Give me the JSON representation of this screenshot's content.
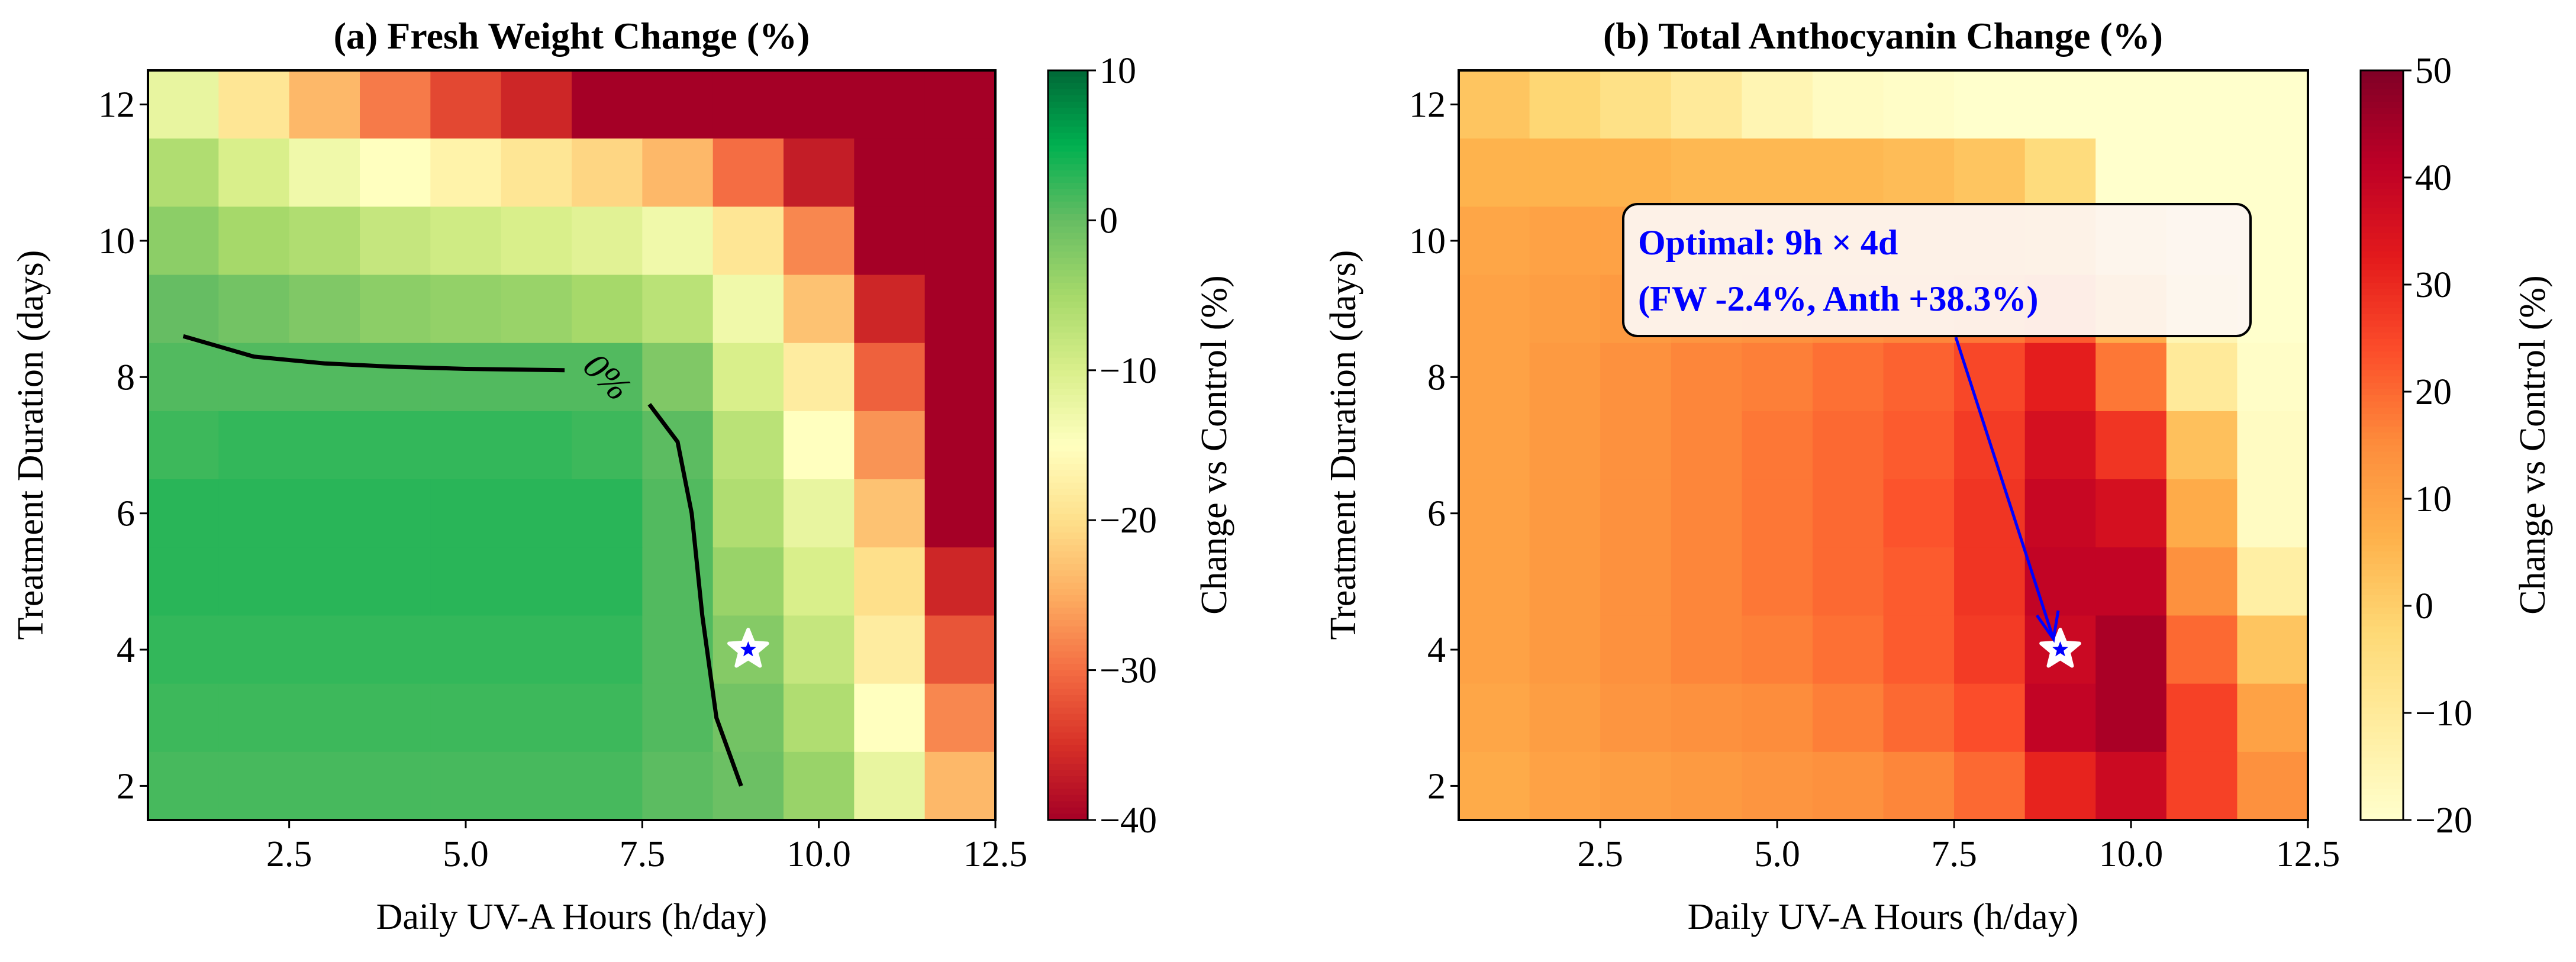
{
  "chart_data": [
    {
      "type": "heatmap",
      "title": "(a) Fresh Weight Change (%)",
      "xlabel": "Daily UV-A Hours (h/day)",
      "ylabel": "Treatment Duration (days)",
      "x": [
        1,
        2,
        3,
        4,
        5,
        6,
        7,
        8,
        9,
        10,
        11,
        12
      ],
      "y": [
        12,
        11,
        10,
        9,
        8,
        7,
        6,
        5,
        4,
        3,
        2
      ],
      "xlim": [
        0.5,
        12.5
      ],
      "ylim": [
        1.5,
        12.5
      ],
      "xticks": [
        "2.5",
        "5.0",
        "7.5",
        "10.0",
        "12.5"
      ],
      "xtick_values": [
        2.5,
        5,
        7.5,
        10,
        12.5
      ],
      "yticks": [
        "2",
        "4",
        "6",
        "8",
        "10",
        "12"
      ],
      "ytick_values": [
        2,
        4,
        6,
        8,
        10,
        12
      ],
      "colormap": "RdYlGn",
      "clim": [
        -40,
        10
      ],
      "colorbar_label": "Change vs Control (%)",
      "colorbar_ticks": [
        "10",
        "0",
        "−10",
        "−20",
        "−30",
        "−40"
      ],
      "colorbar_tick_values": [
        10,
        0,
        -10,
        -20,
        -30,
        -40
      ],
      "values": [
        [
          -12,
          -19,
          -24,
          -29,
          -33,
          -36,
          -40,
          -40,
          -40,
          -40,
          -40,
          -40
        ],
        [
          -6,
          -10,
          -13,
          -15,
          -17,
          -19,
          -21,
          -24,
          -30,
          -37,
          -40,
          -40
        ],
        [
          -3,
          -5,
          -6,
          -8,
          -9,
          -10,
          -11,
          -13,
          -19,
          -28,
          -40,
          -40
        ],
        [
          0,
          -1,
          -2,
          -3,
          -3.5,
          -4,
          -5,
          -7,
          -13,
          -23,
          -36,
          -40
        ],
        [
          1,
          1,
          1,
          1,
          1,
          1,
          1,
          -2,
          -10,
          -18,
          -31,
          -40
        ],
        [
          2,
          2.5,
          2.5,
          2.5,
          2.5,
          2.5,
          2,
          0.5,
          -7,
          -15,
          -27,
          -40
        ],
        [
          3,
          3,
          3,
          3,
          3,
          3,
          3,
          1,
          -6,
          -12,
          -23,
          -40
        ],
        [
          3,
          3,
          3,
          3,
          3,
          3,
          3,
          1,
          -4,
          -10,
          -20,
          -36
        ],
        [
          2.5,
          2.5,
          2.5,
          2.5,
          2.5,
          2.5,
          2.5,
          1,
          -2.4,
          -8,
          -18,
          -32
        ],
        [
          2,
          2,
          2,
          2,
          2,
          2,
          2,
          1,
          -1,
          -6,
          -15,
          -28
        ],
        [
          1.5,
          1.5,
          1.5,
          1.5,
          1.5,
          1.5,
          1.5,
          0.5,
          -0.5,
          -4,
          -12,
          -24
        ]
      ],
      "contour": {
        "level_label": "0%",
        "segments": [
          [
            [
              1,
              8.6
            ],
            [
              2,
              8.3
            ],
            [
              3,
              8.2
            ],
            [
              4,
              8.15
            ],
            [
              5,
              8.12
            ],
            [
              6.4,
              8.1
            ]
          ],
          [
            [
              7.6,
              7.6
            ],
            [
              8,
              7.05
            ],
            [
              8.2,
              6
            ],
            [
              8.35,
              4.5
            ],
            [
              8.55,
              3
            ],
            [
              8.9,
              2
            ]
          ]
        ],
        "label_at": [
          7.0,
          8.0
        ]
      },
      "marker": {
        "x": 9,
        "y": 4
      }
    },
    {
      "type": "heatmap",
      "title": "(b) Total Anthocyanin Change (%)",
      "xlabel": "Daily UV-A Hours (h/day)",
      "ylabel": "Treatment Duration (days)",
      "x": [
        1,
        2,
        3,
        4,
        5,
        6,
        7,
        8,
        9,
        10,
        11,
        12
      ],
      "y": [
        12,
        11,
        10,
        9,
        8,
        7,
        6,
        5,
        4,
        3,
        2
      ],
      "xlim": [
        0.5,
        12.5
      ],
      "ylim": [
        1.5,
        12.5
      ],
      "xticks": [
        "2.5",
        "5.0",
        "7.5",
        "10.0",
        "12.5"
      ],
      "xtick_values": [
        2.5,
        5,
        7.5,
        10,
        12.5
      ],
      "yticks": [
        "2",
        "4",
        "6",
        "8",
        "10",
        "12"
      ],
      "ytick_values": [
        2,
        4,
        6,
        8,
        10,
        12
      ],
      "colormap": "YlOrRd",
      "clim": [
        -20,
        50
      ],
      "colorbar_label": "Change vs Control (%)",
      "colorbar_ticks": [
        "50",
        "40",
        "30",
        "20",
        "10",
        "0",
        "−10",
        "−20"
      ],
      "colorbar_tick_values": [
        50,
        40,
        30,
        20,
        10,
        0,
        -10,
        -20
      ],
      "values": [
        [
          2,
          -2,
          -6,
          -10,
          -15,
          -18,
          -19,
          -20,
          -20,
          -20,
          -20,
          -20
        ],
        [
          6,
          6,
          6,
          5,
          5,
          5,
          4,
          2,
          -4,
          -20,
          -20,
          -20
        ],
        [
          9,
          10,
          10,
          10,
          10,
          10,
          10,
          10,
          9,
          -10,
          -20,
          -20
        ],
        [
          10,
          11,
          12,
          13,
          14,
          15,
          16,
          18,
          22,
          8,
          -15,
          -20
        ],
        [
          10,
          12,
          14,
          16,
          17,
          19,
          21,
          25,
          32,
          18,
          -10,
          -19
        ],
        [
          10,
          12,
          14,
          16,
          18,
          20,
          22,
          27,
          36,
          28,
          3,
          -18
        ],
        [
          10,
          12,
          14,
          16,
          18,
          20,
          23,
          28,
          39,
          36,
          8,
          -18
        ],
        [
          10,
          12,
          14,
          16,
          18,
          20,
          22,
          28,
          40,
          40,
          14,
          -12
        ],
        [
          10,
          12,
          14,
          16,
          17,
          19,
          22,
          27,
          38.3,
          44,
          20,
          2
        ],
        [
          9,
          11,
          13,
          14,
          15,
          17,
          20,
          24,
          40,
          44,
          26,
          10
        ],
        [
          8,
          10,
          11,
          12,
          13,
          14,
          16,
          20,
          31,
          38,
          26,
          14
        ]
      ],
      "marker": {
        "x": 9,
        "y": 4
      },
      "annotation": {
        "line1": "Optimal: 9h × 4d",
        "line2": "(FW -2.4%, Anth +38.3%)",
        "color": "#0000ff"
      }
    }
  ]
}
